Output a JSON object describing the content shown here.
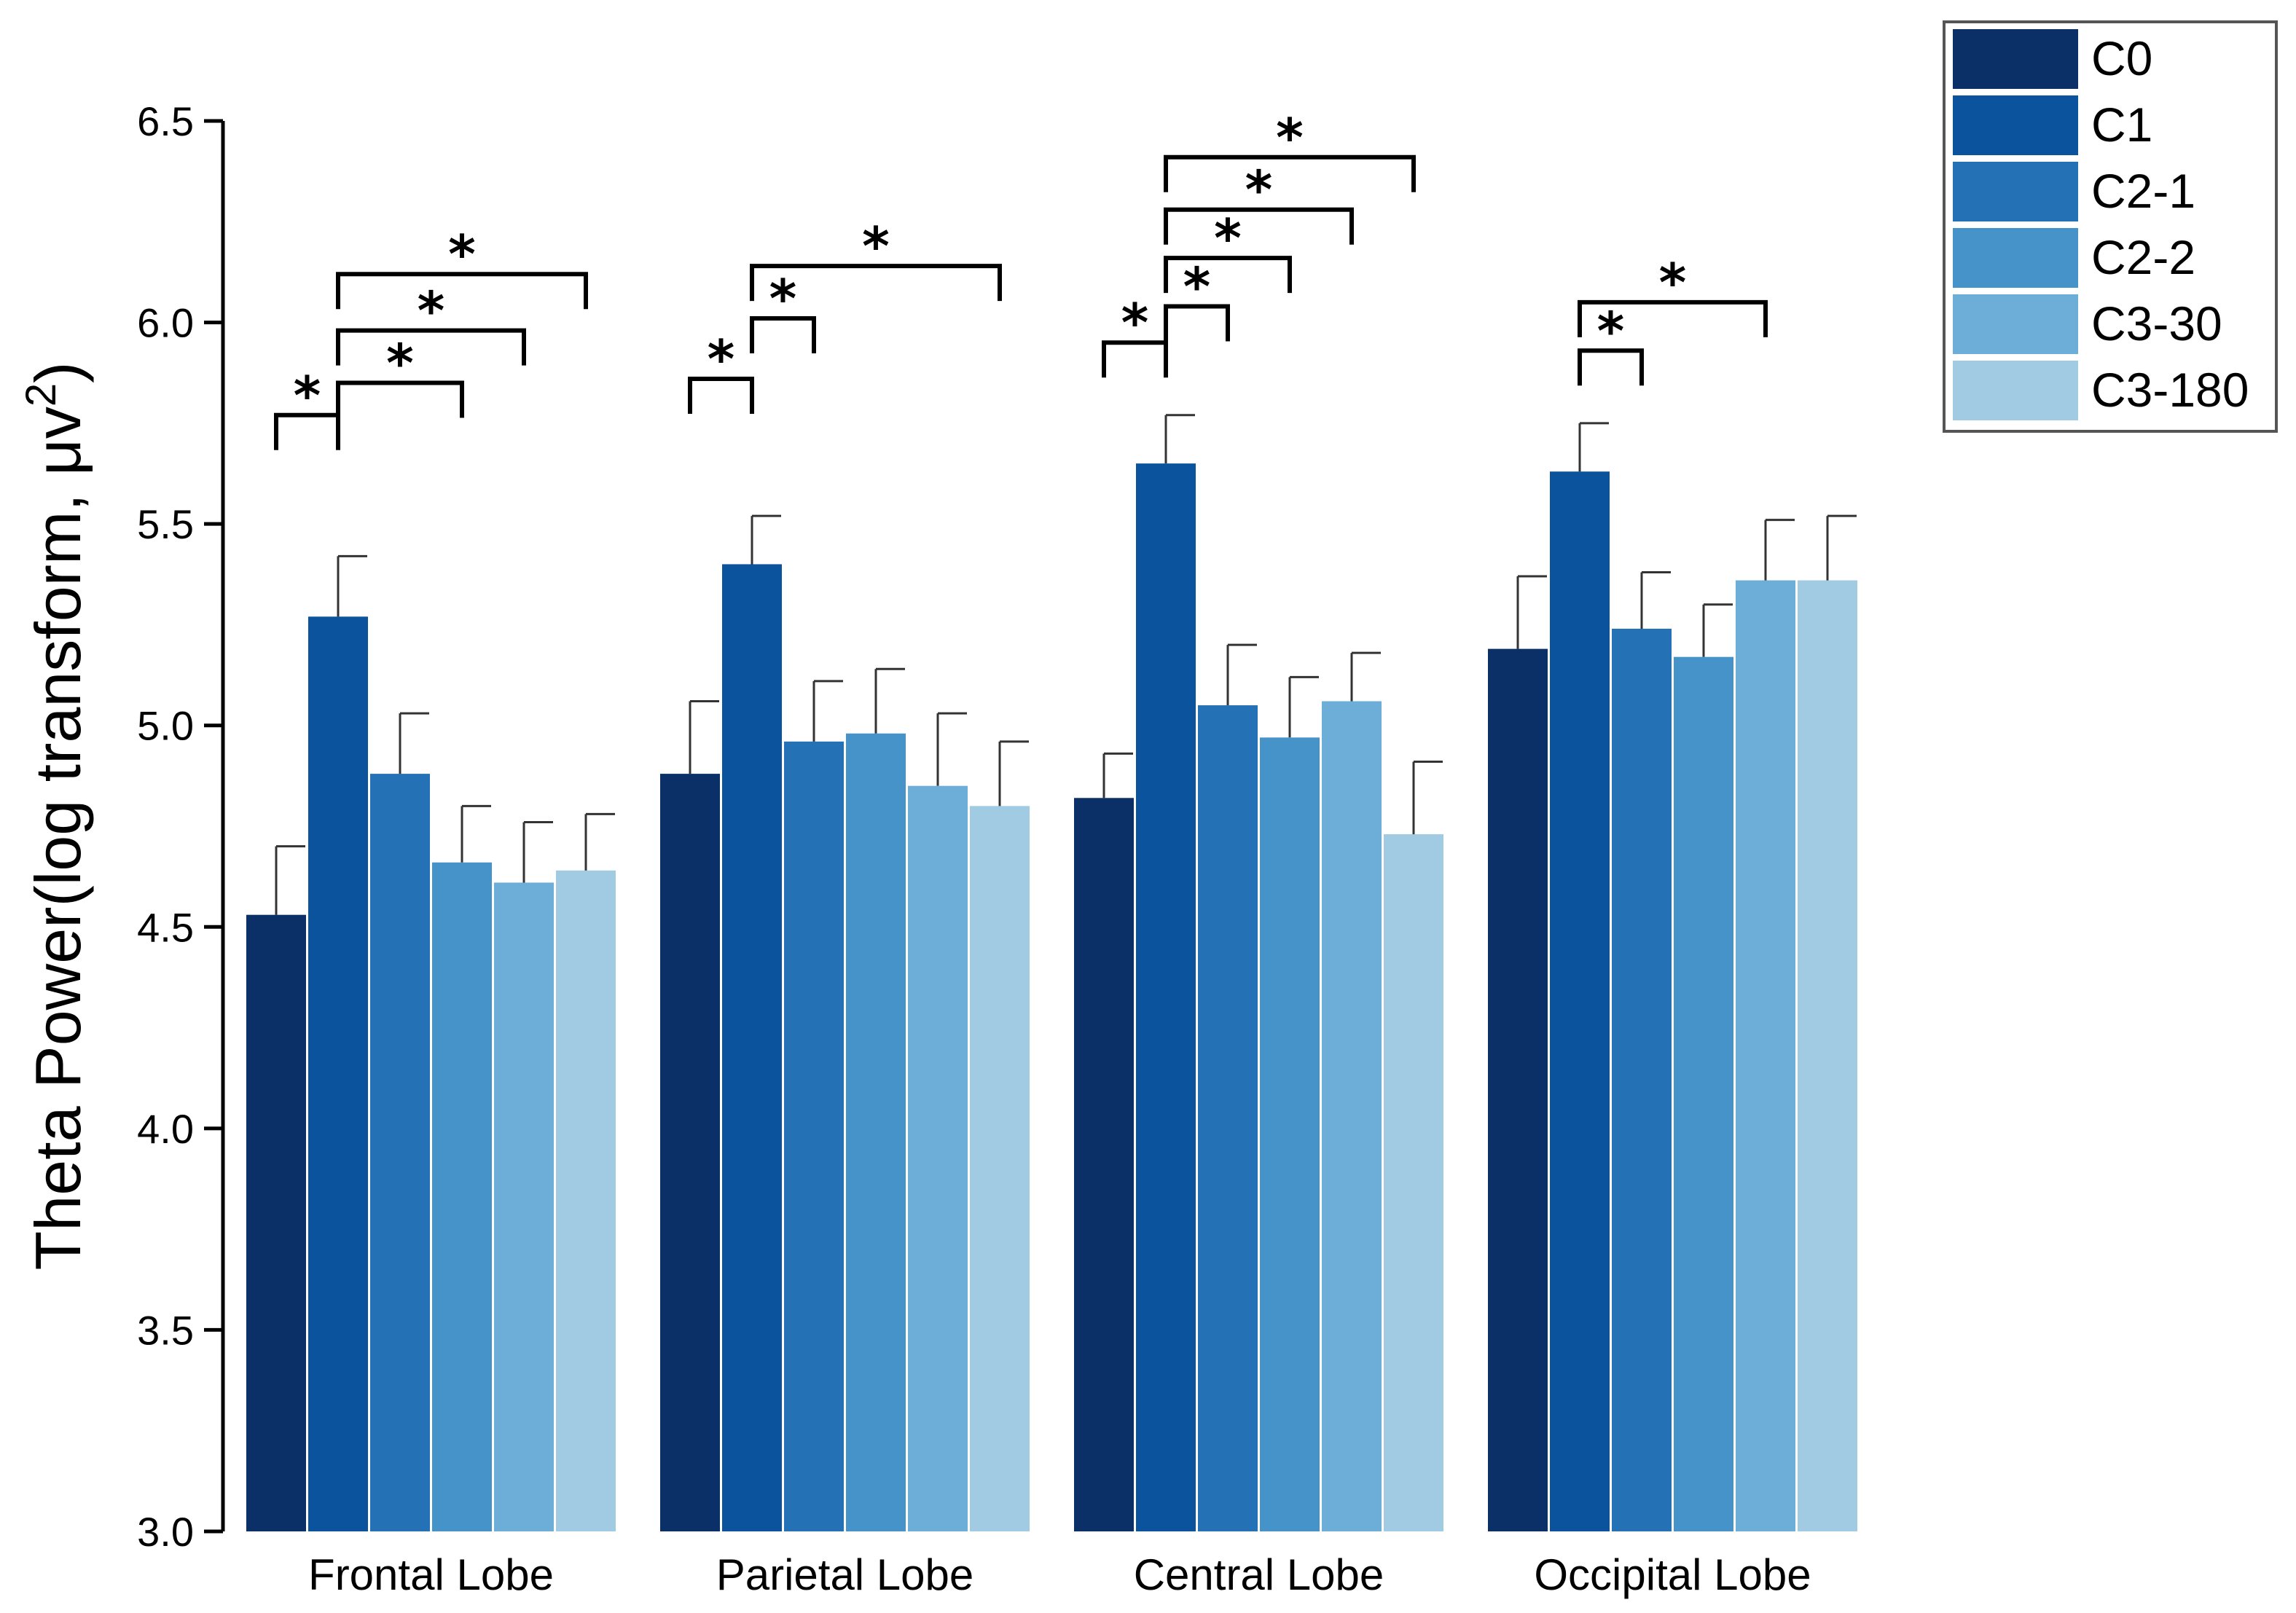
{
  "chart_data": {
    "type": "bar",
    "title": "",
    "xlabel": "",
    "ylabel_main": "Theta Power(log transform, μv",
    "ylabel_sup": "2",
    "ylabel_end": ")",
    "ylim": [
      3.0,
      6.5
    ],
    "yticks": [
      "3.0",
      "3.5",
      "4.0",
      "4.5",
      "5.0",
      "5.5",
      "6.0",
      "6.5"
    ],
    "categories": [
      "Frontal Lobe",
      "Parietal Lobe",
      "Central Lobe",
      "Occipital Lobe"
    ],
    "legend_position": "top-right",
    "series": [
      {
        "name": "C0",
        "color": "#0b3068",
        "values": [
          4.53,
          4.88,
          4.82,
          5.19
        ],
        "errors": [
          0.17,
          0.18,
          0.11,
          0.18
        ]
      },
      {
        "name": "C1",
        "color": "#0b539d",
        "values": [
          5.27,
          5.4,
          5.65,
          5.63
        ],
        "errors": [
          0.15,
          0.12,
          0.12,
          0.12
        ]
      },
      {
        "name": "C2-1",
        "color": "#2472b5",
        "values": [
          4.88,
          4.96,
          5.05,
          5.24
        ],
        "errors": [
          0.15,
          0.15,
          0.15,
          0.14
        ]
      },
      {
        "name": "C2-2",
        "color": "#4593c9",
        "values": [
          4.66,
          4.98,
          4.97,
          5.17
        ],
        "errors": [
          0.14,
          0.16,
          0.15,
          0.13
        ]
      },
      {
        "name": "C3-30",
        "color": "#6daed8",
        "values": [
          4.61,
          4.85,
          5.06,
          5.36
        ],
        "errors": [
          0.15,
          0.18,
          0.12,
          0.15
        ]
      },
      {
        "name": "C3-180",
        "color": "#a0cbe2",
        "values": [
          4.64,
          4.8,
          4.73,
          5.36
        ],
        "errors": [
          0.14,
          0.16,
          0.18,
          0.16
        ]
      }
    ],
    "significance": [
      {
        "category": 0,
        "from": 0,
        "to": 1,
        "y": 5.77,
        "label": "*"
      },
      {
        "category": 0,
        "from": 1,
        "to": 3,
        "y": 5.85,
        "label": "*"
      },
      {
        "category": 0,
        "from": 1,
        "to": 4,
        "y": 5.98,
        "label": "*"
      },
      {
        "category": 0,
        "from": 1,
        "to": 5,
        "y": 6.12,
        "label": "*"
      },
      {
        "category": 1,
        "from": 0,
        "to": 1,
        "y": 5.86,
        "label": "*"
      },
      {
        "category": 1,
        "from": 1,
        "to": 2,
        "y": 6.01,
        "label": "*"
      },
      {
        "category": 1,
        "from": 1,
        "to": 5,
        "y": 6.14,
        "label": "*"
      },
      {
        "category": 2,
        "from": 0,
        "to": 1,
        "y": 5.95,
        "label": "*"
      },
      {
        "category": 2,
        "from": 1,
        "to": 2,
        "y": 6.04,
        "label": "*"
      },
      {
        "category": 2,
        "from": 1,
        "to": 3,
        "y": 6.16,
        "label": "*"
      },
      {
        "category": 2,
        "from": 1,
        "to": 4,
        "y": 6.28,
        "label": "*"
      },
      {
        "category": 2,
        "from": 1,
        "to": 5,
        "y": 6.41,
        "label": "*"
      },
      {
        "category": 3,
        "from": 1,
        "to": 2,
        "y": 5.93,
        "label": "*"
      },
      {
        "category": 3,
        "from": 1,
        "to": 4,
        "y": 6.05,
        "label": "*"
      }
    ]
  }
}
